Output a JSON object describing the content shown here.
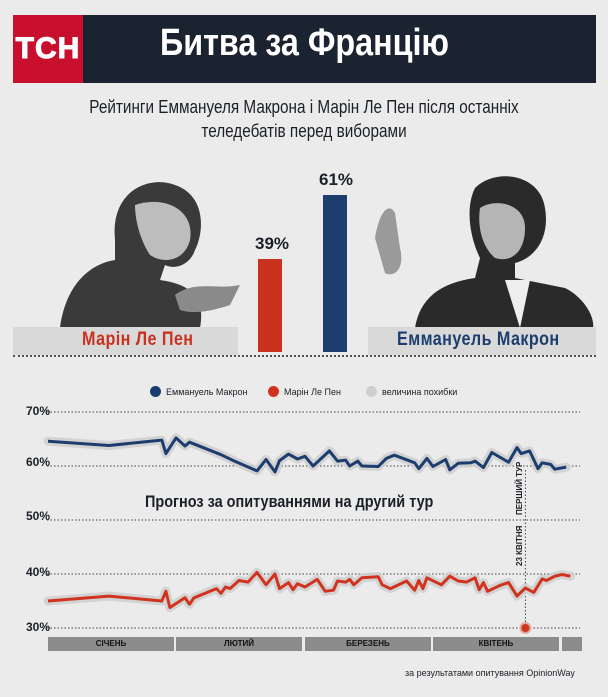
{
  "header": {
    "logo": "ТСН",
    "title": "Битва за Францію"
  },
  "subtitle_line1": "Рейтинги Еммануеля Макрона і Марін Ле Пен після останніх",
  "subtitle_line2": "теледебатів перед виборами",
  "candidates": {
    "lepen": {
      "name": "Марін Ле Пен",
      "rating": "39%",
      "value": 39,
      "color": "#c8321f"
    },
    "macron": {
      "name": "Еммануель Макрон",
      "rating": "61%",
      "value": 61,
      "color": "#1c3d6e"
    }
  },
  "chart_data": {
    "type": "line",
    "title": "Прогноз за опитуваннями на другий тур",
    "ylim": [
      30,
      70
    ],
    "yticks": [
      "70%",
      "60%",
      "50%",
      "40%",
      "30%"
    ],
    "ytick_values": [
      70,
      60,
      50,
      40,
      30
    ],
    "grid": "dotted horizontal",
    "legend": {
      "placement": "top",
      "items": [
        "Еммануель Макрон",
        "Марін Ле Пен",
        "величина похибки"
      ]
    },
    "months": [
      "СІЧЕНЬ",
      "ЛЮТИЙ",
      "БЕРЕЗЕНЬ",
      "КВІТЕНЬ",
      ""
    ],
    "annotation": {
      "date": "2017-04-23",
      "label1": "23 КВІТНЯ",
      "label2": "ПЕРШИЙ ТУР"
    },
    "error_band_color": "#cfcfcf",
    "series": [
      {
        "name": "Еммануель Макрон",
        "color": "#1c3d6e",
        "points": [
          [
            "01-01",
            64.6
          ],
          [
            "01-16",
            63.8
          ],
          [
            "01-29",
            64.8
          ],
          [
            "01-30",
            62.3
          ],
          [
            "02-01",
            65.2
          ],
          [
            "02-03",
            63.7
          ],
          [
            "02-04",
            64.4
          ],
          [
            "02-11",
            62.1
          ],
          [
            "02-14",
            60.9
          ],
          [
            "02-19",
            59.1
          ],
          [
            "02-21",
            61.2
          ],
          [
            "02-23",
            58.9
          ],
          [
            "02-24",
            61.0
          ],
          [
            "02-26",
            62.2
          ],
          [
            "02-28",
            61.3
          ],
          [
            "03-01",
            61.8
          ],
          [
            "03-03",
            60.0
          ],
          [
            "03-07",
            62.8
          ],
          [
            "03-09",
            60.9
          ],
          [
            "03-11",
            61.1
          ],
          [
            "03-12",
            60.0
          ],
          [
            "03-14",
            60.9
          ],
          [
            "03-15",
            60.0
          ],
          [
            "03-19",
            59.9
          ],
          [
            "03-21",
            61.4
          ],
          [
            "03-23",
            62.0
          ],
          [
            "03-28",
            60.6
          ],
          [
            "03-29",
            59.5
          ],
          [
            "03-31",
            61.4
          ],
          [
            "04-01",
            59.9
          ],
          [
            "04-04",
            61.2
          ],
          [
            "04-05",
            59.3
          ],
          [
            "04-07",
            60.5
          ],
          [
            "04-10",
            60.6
          ],
          [
            "04-11",
            60.9
          ],
          [
            "04-13",
            59.7
          ],
          [
            "04-15",
            62.5
          ],
          [
            "04-19",
            60.7
          ],
          [
            "04-21",
            63.4
          ],
          [
            "04-22",
            62.3
          ],
          [
            "04-24",
            62.8
          ],
          [
            "04-26",
            59.5
          ],
          [
            "04-27",
            60.6
          ],
          [
            "04-29",
            60.3
          ],
          [
            "04-30",
            59.4
          ],
          [
            "05-02",
            59.8
          ]
        ]
      },
      {
        "name": "Марін Ле Пен",
        "color": "#d0341f",
        "points": [
          [
            "01-01",
            35.0
          ],
          [
            "01-16",
            35.9
          ],
          [
            "01-29",
            35.0
          ],
          [
            "01-30",
            36.8
          ],
          [
            "01-31",
            33.8
          ],
          [
            "02-03",
            35.6
          ],
          [
            "02-04",
            34.4
          ],
          [
            "02-05",
            35.6
          ],
          [
            "02-10",
            37.3
          ],
          [
            "02-11",
            36.4
          ],
          [
            "02-12",
            37.6
          ],
          [
            "02-13",
            37.3
          ],
          [
            "02-15",
            38.8
          ],
          [
            "02-17",
            38.5
          ],
          [
            "02-19",
            40.3
          ],
          [
            "02-21",
            38.0
          ],
          [
            "02-23",
            40.0
          ],
          [
            "02-24",
            37.3
          ],
          [
            "02-26",
            38.4
          ],
          [
            "02-27",
            37.1
          ],
          [
            "02-28",
            38.2
          ],
          [
            "03-01",
            37.6
          ],
          [
            "03-04",
            39.0
          ],
          [
            "03-06",
            36.8
          ],
          [
            "03-08",
            37.0
          ],
          [
            "03-09",
            38.7
          ],
          [
            "03-11",
            38.5
          ],
          [
            "03-12",
            39.0
          ],
          [
            "03-13",
            38.0
          ],
          [
            "03-15",
            39.3
          ],
          [
            "03-19",
            39.5
          ],
          [
            "03-20",
            38.0
          ],
          [
            "03-22",
            37.3
          ],
          [
            "03-26",
            38.7
          ],
          [
            "03-28",
            37.0
          ],
          [
            "03-29",
            38.8
          ],
          [
            "03-30",
            37.3
          ],
          [
            "03-31",
            39.3
          ],
          [
            "04-03",
            38.0
          ],
          [
            "04-05",
            39.6
          ],
          [
            "04-07",
            38.7
          ],
          [
            "04-09",
            38.5
          ],
          [
            "04-11",
            39.3
          ],
          [
            "04-12",
            37.1
          ],
          [
            "04-13",
            38.4
          ],
          [
            "04-14",
            36.8
          ],
          [
            "04-17",
            37.9
          ],
          [
            "04-19",
            38.4
          ],
          [
            "04-21",
            35.9
          ],
          [
            "04-23",
            37.4
          ],
          [
            "04-25",
            36.6
          ],
          [
            "04-27",
            39.1
          ],
          [
            "04-28",
            38.8
          ],
          [
            "04-30",
            39.6
          ],
          [
            "05-01",
            39.9
          ],
          [
            "05-03",
            39.6
          ]
        ]
      }
    ]
  },
  "source": "за результатами опитування OpinionWay"
}
